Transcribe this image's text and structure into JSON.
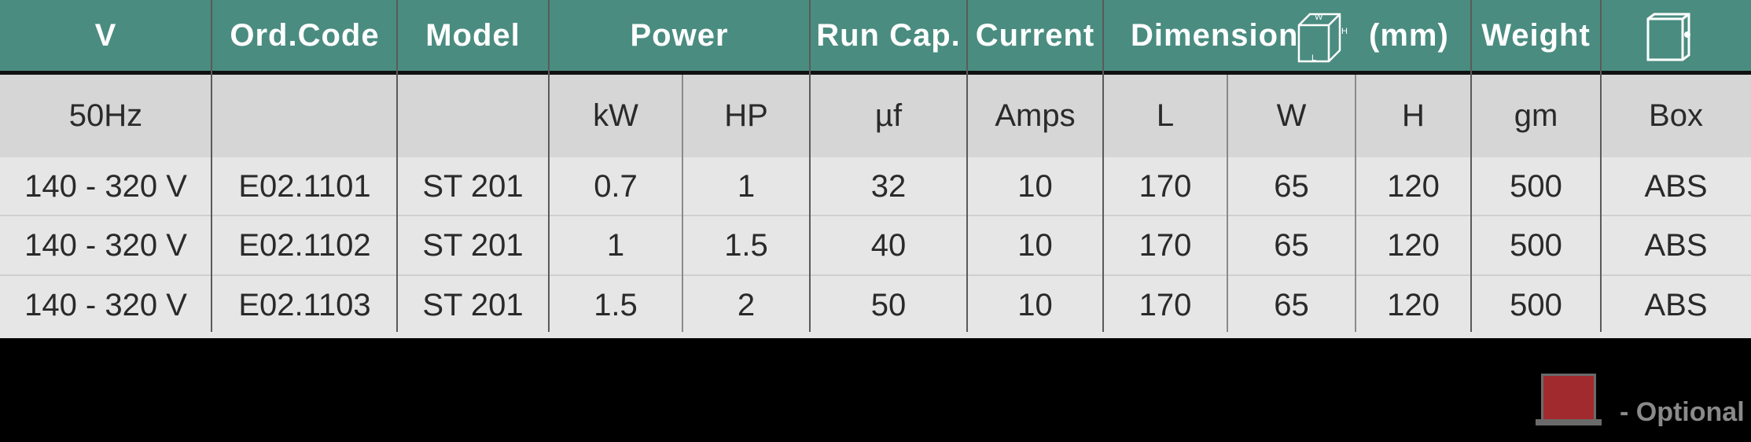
{
  "header": {
    "v": "V",
    "ord_code": "Ord.Code",
    "model": "Model",
    "power": "Power",
    "run_cap": "Run Cap.",
    "current": "Current",
    "dimension": "Dimension",
    "dimension_unit": "(mm)",
    "weight": "Weight",
    "dimension_icon_labels": {
      "w": "W",
      "h": "H",
      "l": "L"
    },
    "box_icon": "box-icon"
  },
  "subheader": {
    "v": "50Hz",
    "ord_code": "",
    "model": "",
    "kw": "kW",
    "hp": "HP",
    "run_cap": "µf",
    "current": "Amps",
    "l": "L",
    "w": "W",
    "h": "H",
    "weight": "gm",
    "box": "Box"
  },
  "rows": [
    [
      "140 - 320 V",
      "E02.1101",
      "ST 201",
      "0.7",
      "1",
      "32",
      "10",
      "170",
      "65",
      "120",
      "500",
      "ABS"
    ],
    [
      "140 - 320 V",
      "E02.1102",
      "ST 201",
      "1",
      "1.5",
      "40",
      "10",
      "170",
      "65",
      "120",
      "500",
      "ABS"
    ],
    [
      "140 - 320 V",
      "E02.1103",
      "ST 201",
      "1.5",
      "2",
      "50",
      "10",
      "170",
      "65",
      "120",
      "500",
      "ABS"
    ]
  ],
  "legend": {
    "icon": "red-box-icon",
    "text": "- Optional"
  },
  "colors": {
    "header_bg": "#4a8c80",
    "subheader_bg": "#d6d6d7",
    "body_bg": "#e6e6e7",
    "legend_red": "#a12a2e"
  }
}
